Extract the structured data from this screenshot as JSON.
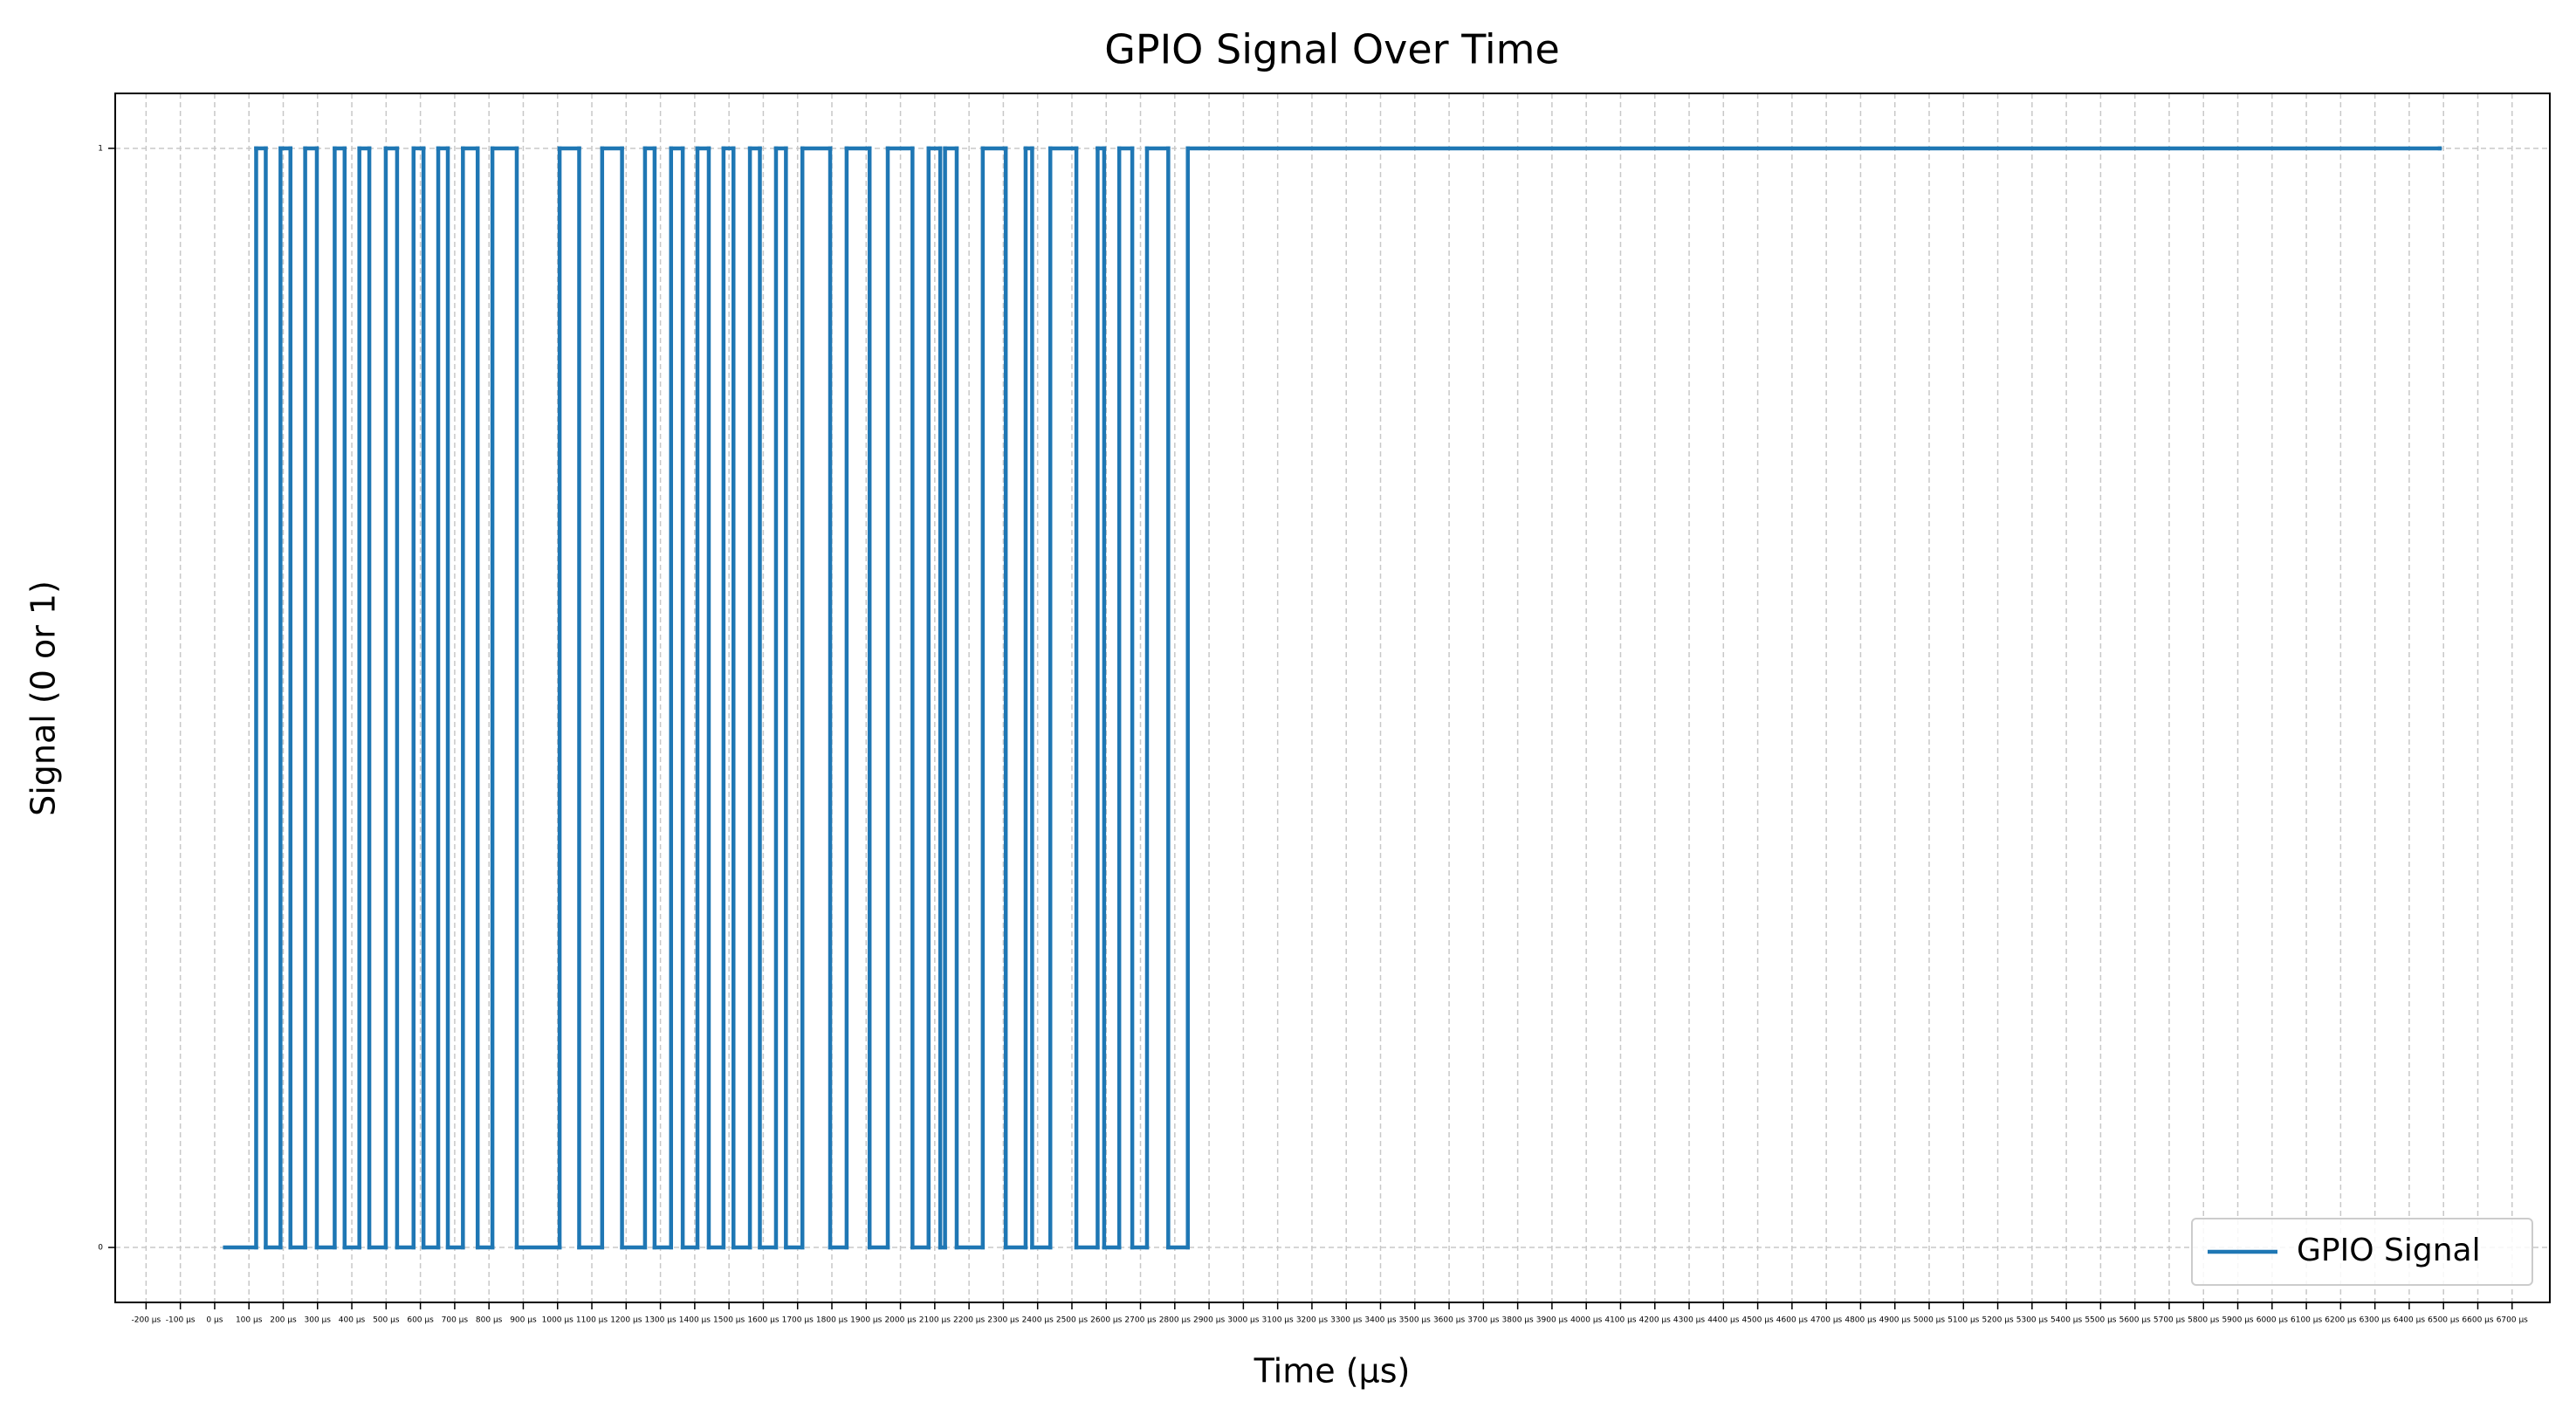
{
  "chart_data": {
    "type": "step",
    "title": "GPIO Signal Over Time",
    "xlabel": "Time (µs)",
    "ylabel": "Signal (0 or 1)",
    "x": [
      30,
      121,
      149,
      192,
      221,
      264,
      298,
      350,
      379,
      422,
      451,
      499,
      532,
      580,
      609,
      652,
      680,
      724,
      767,
      810,
      881,
      1006,
      1063,
      1130,
      1188,
      1255,
      1283,
      1331,
      1365,
      1408,
      1441,
      1484,
      1513,
      1561,
      1590,
      1637,
      1666,
      1714,
      1795,
      1843,
      1910,
      1963,
      2035,
      2082,
      2116,
      2130,
      2164,
      2240,
      2307,
      2365,
      2384,
      2437,
      2513,
      2575,
      2594,
      2638,
      2676,
      2719,
      2781,
      2838,
      6489
    ],
    "series": [
      {
        "name": "GPIO Signal",
        "color": "#1f77b4",
        "values": [
          0,
          1,
          0,
          1,
          0,
          1,
          0,
          1,
          0,
          1,
          0,
          1,
          0,
          1,
          0,
          1,
          0,
          1,
          0,
          1,
          0,
          1,
          0,
          1,
          0,
          1,
          0,
          1,
          0,
          1,
          0,
          1,
          0,
          1,
          0,
          1,
          0,
          1,
          0,
          1,
          0,
          1,
          0,
          1,
          0,
          1,
          0,
          1,
          0,
          1,
          0,
          1,
          0,
          1,
          0,
          1,
          0,
          1,
          0,
          1,
          1
        ]
      }
    ],
    "xlim": [
      -290,
      6810
    ],
    "ylim": [
      -0.05,
      1.05
    ],
    "yticks": [
      0,
      1
    ],
    "xticks": [
      {
        "value": -200,
        "label": "-200 µs"
      },
      {
        "value": -100,
        "label": "-100 µs"
      },
      {
        "value": 0,
        "label": "0 µs"
      },
      {
        "value": 100,
        "label": "100 µs"
      },
      {
        "value": 200,
        "label": "200 µs"
      },
      {
        "value": 300,
        "label": "300 µs"
      },
      {
        "value": 400,
        "label": "400 µs"
      },
      {
        "value": 500,
        "label": "500 µs"
      },
      {
        "value": 600,
        "label": "600 µs"
      },
      {
        "value": 700,
        "label": "700 µs"
      },
      {
        "value": 800,
        "label": "800 µs"
      },
      {
        "value": 900,
        "label": "900 µs"
      },
      {
        "value": 1000,
        "label": "1000 µs"
      },
      {
        "value": 1100,
        "label": "1100 µs"
      },
      {
        "value": 1200,
        "label": "1200 µs"
      },
      {
        "value": 1300,
        "label": "1300 µs"
      },
      {
        "value": 1400,
        "label": "1400 µs"
      },
      {
        "value": 1500,
        "label": "1500 µs"
      },
      {
        "value": 1600,
        "label": "1600 µs"
      },
      {
        "value": 1700,
        "label": "1700 µs"
      },
      {
        "value": 1800,
        "label": "1800 µs"
      },
      {
        "value": 1900,
        "label": "1900 µs"
      },
      {
        "value": 2000,
        "label": "2000 µs"
      },
      {
        "value": 2100,
        "label": "2100 µs"
      },
      {
        "value": 2200,
        "label": "2200 µs"
      },
      {
        "value": 2300,
        "label": "2300 µs"
      },
      {
        "value": 2400,
        "label": "2400 µs"
      },
      {
        "value": 2500,
        "label": "2500 µs"
      },
      {
        "value": 2600,
        "label": "2600 µs"
      },
      {
        "value": 2700,
        "label": "2700 µs"
      },
      {
        "value": 2800,
        "label": "2800 µs"
      },
      {
        "value": 2900,
        "label": "2900 µs"
      },
      {
        "value": 3000,
        "label": "3000 µs"
      },
      {
        "value": 3100,
        "label": "3100 µs"
      },
      {
        "value": 3200,
        "label": "3200 µs"
      },
      {
        "value": 3300,
        "label": "3300 µs"
      },
      {
        "value": 3400,
        "label": "3400 µs"
      },
      {
        "value": 3500,
        "label": "3500 µs"
      },
      {
        "value": 3600,
        "label": "3600 µs"
      },
      {
        "value": 3700,
        "label": "3700 µs"
      },
      {
        "value": 3800,
        "label": "3800 µs"
      },
      {
        "value": 3900,
        "label": "3900 µs"
      },
      {
        "value": 4000,
        "label": "4000 µs"
      },
      {
        "value": 4100,
        "label": "4100 µs"
      },
      {
        "value": 4200,
        "label": "4200 µs"
      },
      {
        "value": 4300,
        "label": "4300 µs"
      },
      {
        "value": 4400,
        "label": "4400 µs"
      },
      {
        "value": 4500,
        "label": "4500 µs"
      },
      {
        "value": 4600,
        "label": "4600 µs"
      },
      {
        "value": 4700,
        "label": "4700 µs"
      },
      {
        "value": 4800,
        "label": "4800 µs"
      },
      {
        "value": 4900,
        "label": "4900 µs"
      },
      {
        "value": 5000,
        "label": "5000 µs"
      },
      {
        "value": 5100,
        "label": "5100 µs"
      },
      {
        "value": 5200,
        "label": "5200 µs"
      },
      {
        "value": 5300,
        "label": "5300 µs"
      },
      {
        "value": 5400,
        "label": "5400 µs"
      },
      {
        "value": 5500,
        "label": "5500 µs"
      },
      {
        "value": 5600,
        "label": "5600 µs"
      },
      {
        "value": 5700,
        "label": "5700 µs"
      },
      {
        "value": 5800,
        "label": "5800 µs"
      },
      {
        "value": 5900,
        "label": "5900 µs"
      },
      {
        "value": 6000,
        "label": "6000 µs"
      },
      {
        "value": 6100,
        "label": "6100 µs"
      },
      {
        "value": 6200,
        "label": "6200 µs"
      },
      {
        "value": 6300,
        "label": "6300 µs"
      },
      {
        "value": 6400,
        "label": "6400 µs"
      },
      {
        "value": 6500,
        "label": "6500 µs"
      },
      {
        "value": 6600,
        "label": "6600 µs"
      },
      {
        "value": 6700,
        "label": "6700 µs"
      }
    ],
    "grid": true,
    "legend": "lower right"
  }
}
